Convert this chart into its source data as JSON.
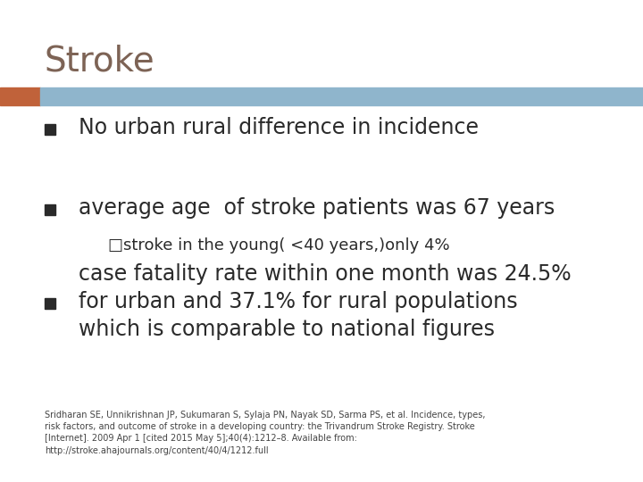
{
  "title": "Stroke",
  "title_color": "#7d6355",
  "title_fontsize": 28,
  "header_bar_color_left": "#c0623a",
  "header_bar_color_right": "#8fb5cc",
  "bullet_color": "#2a2a2a",
  "bullet_box_color": "#2a2a2a",
  "bullets": [
    {
      "text": "No urban rural difference in incidence",
      "sub": null,
      "fontsize": 17
    },
    {
      "text": "average age  of stroke patients was 67 years",
      "sub": "□stroke in the young( <40 years,)only 4%",
      "fontsize": 17
    },
    {
      "text": "case fatality rate within one month was 24.5%\nfor urban and 37.1% for rural populations\nwhich is comparable to national figures",
      "sub": null,
      "fontsize": 17
    }
  ],
  "footnote": "Sridharan SE, Unnikrishnan JP, Sukumaran S, Sylaja PN, Nayak SD, Sarma PS, et al. Incidence, types,\nrisk factors, and outcome of stroke in a developing country: the Trivandrum Stroke Registry. Stroke\n[Internet]. 2009 Apr 1 [cited 2015 May 5];40(4):1212–8. Available from:\nhttp://stroke.ahajournals.org/content/40/4/1212.full",
  "footnote_fontsize": 7,
  "footnote_color": "#444444",
  "bg_color": "#ffffff",
  "fig_width": 7.2,
  "fig_height": 5.4,
  "dpi": 100
}
